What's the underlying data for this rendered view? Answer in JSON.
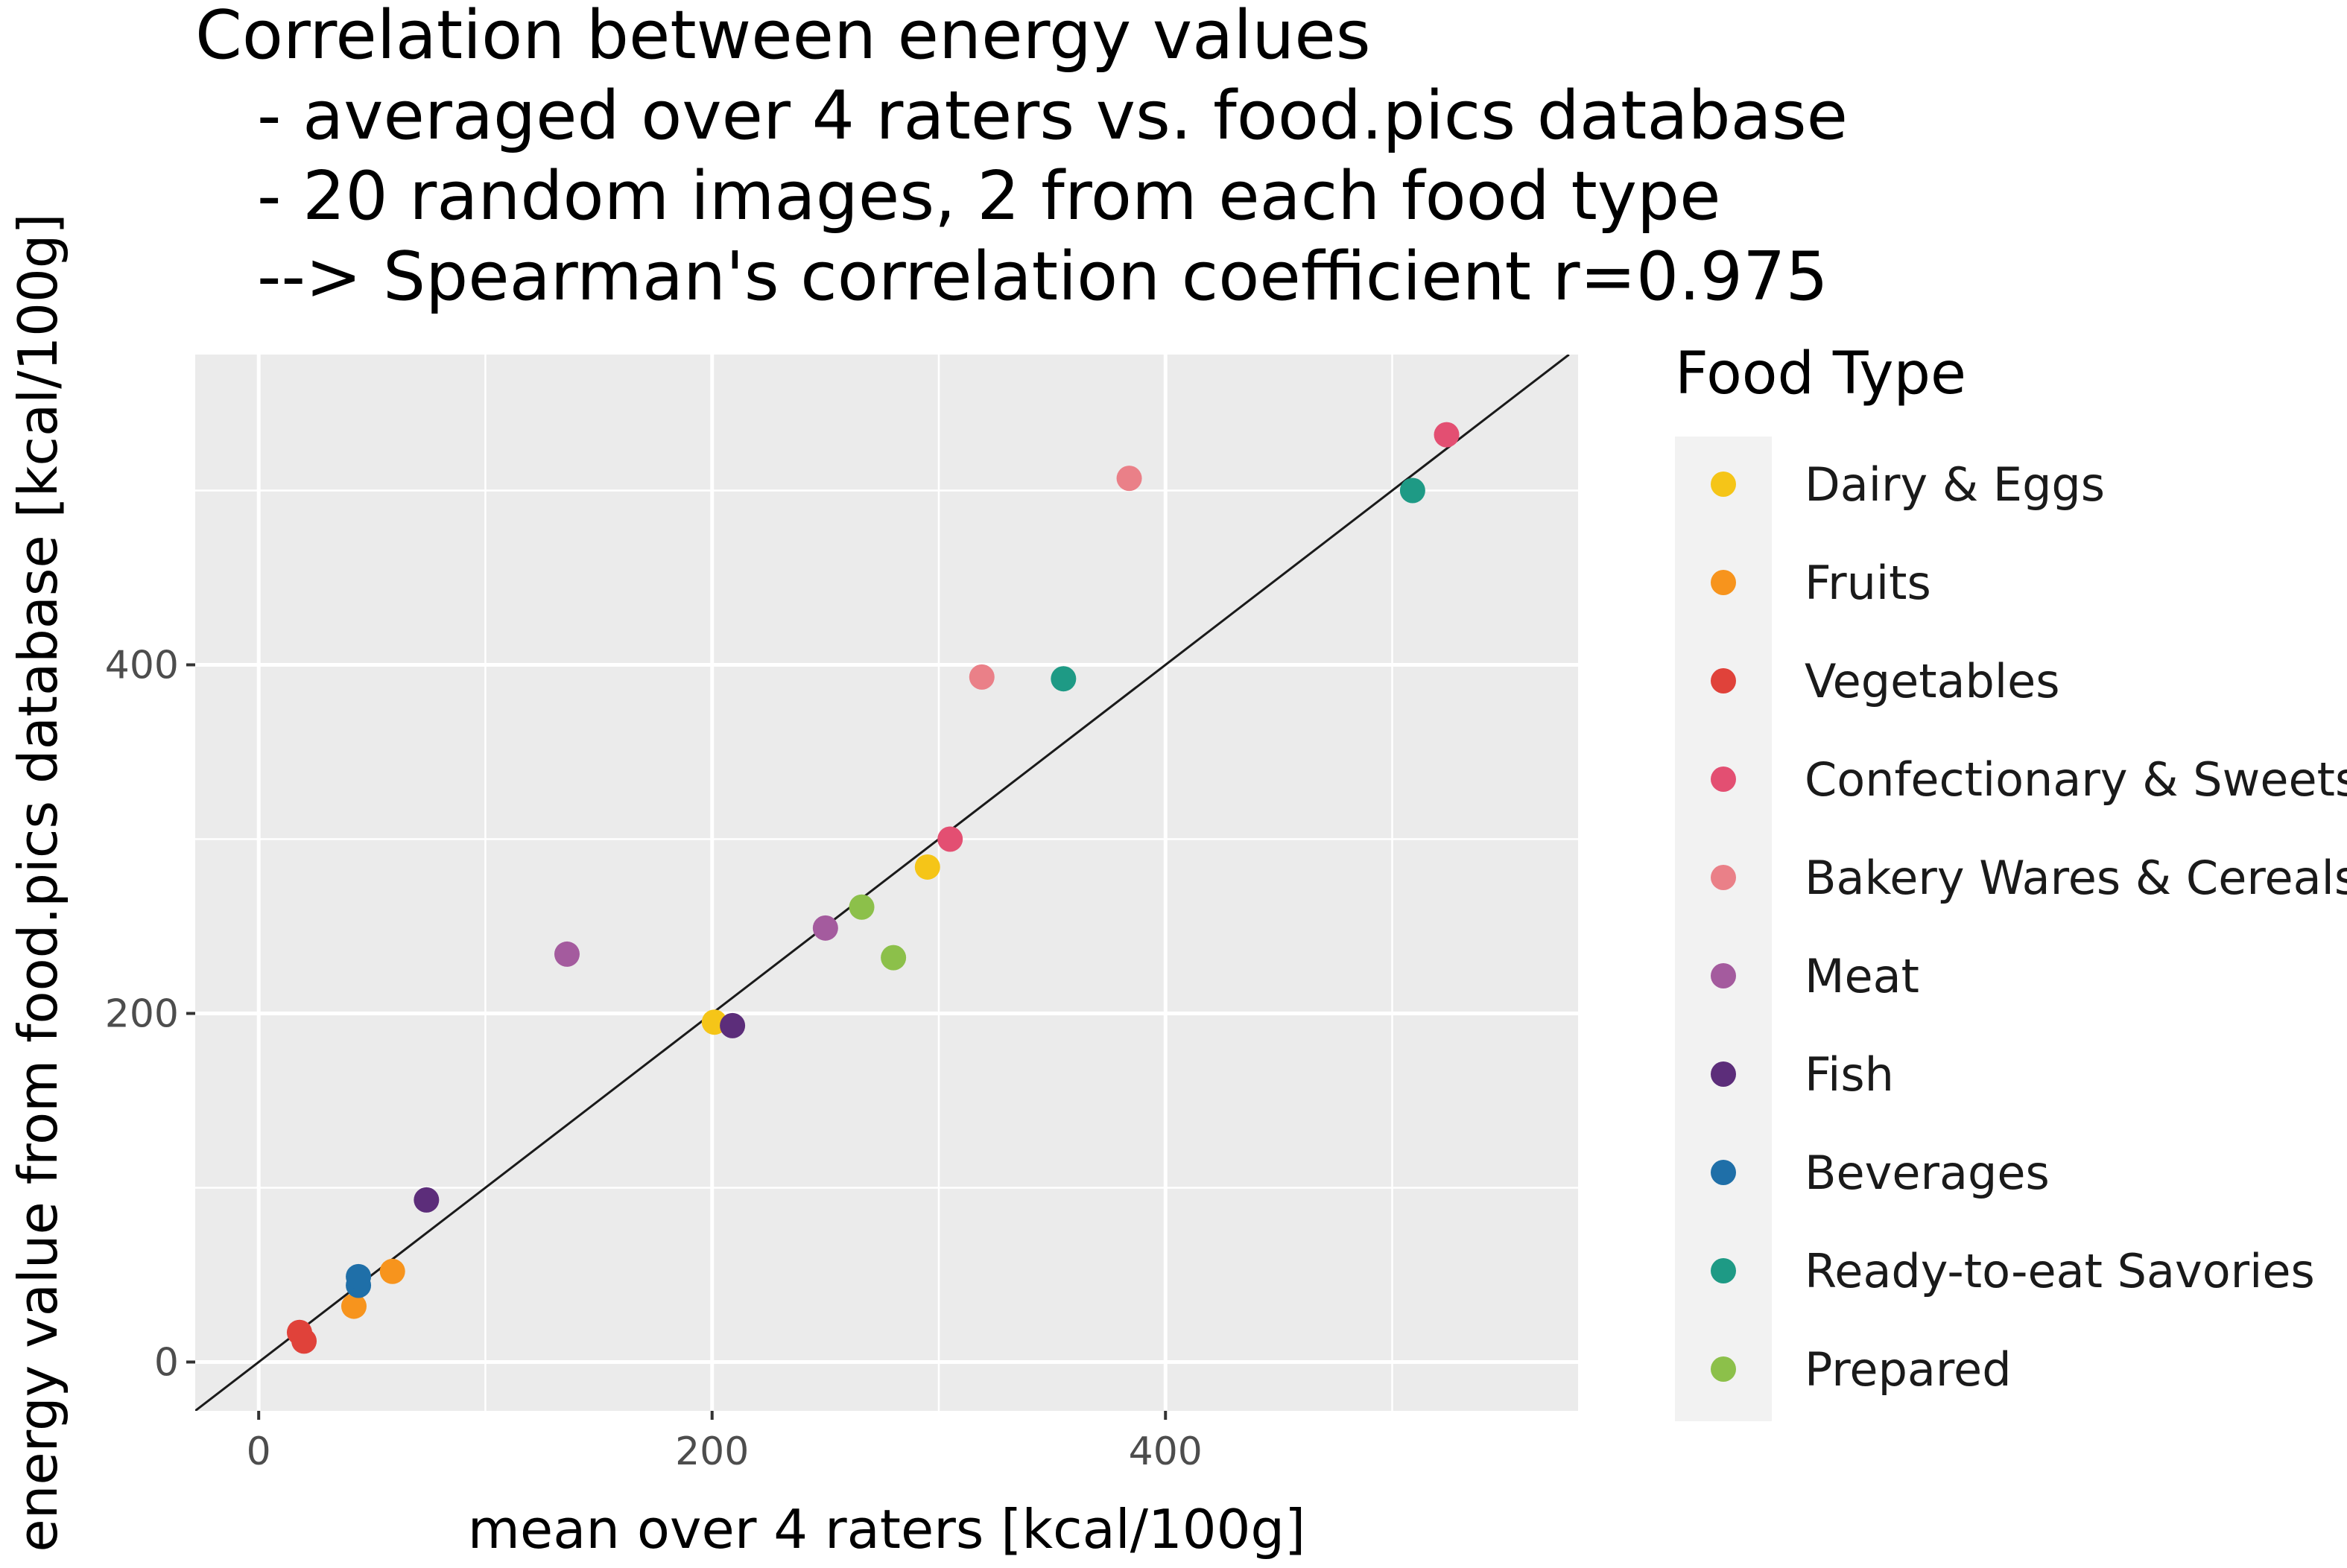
{
  "chart_data": {
    "type": "scatter",
    "title": [
      "Correlation between energy values",
      "- averaged over 4 raters vs. food.pics database",
      "- 20 random images, 2 from each food type",
      "--> Spearman's correlation coefficient r=0.975"
    ],
    "xlabel": "mean over 4 raters [kcal/100g]",
    "ylabel": "energy value from food.pics database [kcal/100g]",
    "xlim": [
      -28,
      582
    ],
    "ylim": [
      -28,
      578
    ],
    "x_ticks": [
      0,
      200,
      400
    ],
    "y_ticks": [
      0,
      200,
      400
    ],
    "x_tick_labels": [
      "0",
      "200",
      "400"
    ],
    "y_tick_labels": [
      "0",
      "200",
      "400"
    ],
    "grid": true,
    "reference_line": {
      "label": "identity line y = x",
      "slope": 1,
      "intercept": 0
    },
    "legend": {
      "title": "Food Type",
      "placement": "right",
      "entries": [
        {
          "label": "Dairy & Eggs",
          "color": "#f5c518"
        },
        {
          "label": "Fruits",
          "color": "#f7941d"
        },
        {
          "label": "Vegetables",
          "color": "#e0423a"
        },
        {
          "label": "Confectionary & Sweets",
          "color": "#e34f72"
        },
        {
          "label": "Bakery Wares & Cereals",
          "color": "#ea8088"
        },
        {
          "label": "Meat",
          "color": "#a45b9e"
        },
        {
          "label": "Fish",
          "color": "#5c2d7a"
        },
        {
          "label": "Beverages",
          "color": "#1f6fa8"
        },
        {
          "label": "Ready-to-eat Savories",
          "color": "#1e9a85"
        },
        {
          "label": "Prepared",
          "color": "#8cc04a"
        }
      ]
    },
    "series": [
      {
        "name": "Dairy & Eggs",
        "color": "#f5c518",
        "points": [
          [
            201,
            195
          ],
          [
            295,
            284
          ]
        ]
      },
      {
        "name": "Fruits",
        "color": "#f7941d",
        "points": [
          [
            42,
            32
          ],
          [
            59,
            52
          ]
        ]
      },
      {
        "name": "Vegetables",
        "color": "#e0423a",
        "points": [
          [
            18,
            17
          ],
          [
            20,
            12
          ]
        ]
      },
      {
        "name": "Confectionary & Sweets",
        "color": "#e34f72",
        "points": [
          [
            305,
            300
          ],
          [
            524,
            532
          ]
        ]
      },
      {
        "name": "Bakery Wares & Cereals",
        "color": "#ea8088",
        "points": [
          [
            319,
            393
          ],
          [
            384,
            507
          ]
        ]
      },
      {
        "name": "Meat",
        "color": "#a45b9e",
        "points": [
          [
            136,
            234
          ],
          [
            250,
            249
          ]
        ]
      },
      {
        "name": "Fish",
        "color": "#5c2d7a",
        "points": [
          [
            74,
            93
          ],
          [
            209,
            193
          ]
        ]
      },
      {
        "name": "Beverages",
        "color": "#1f6fa8",
        "points": [
          [
            44,
            44
          ],
          [
            44,
            49
          ]
        ]
      },
      {
        "name": "Ready-to-eat Savories",
        "color": "#1e9a85",
        "points": [
          [
            355,
            392
          ],
          [
            509,
            500
          ]
        ]
      },
      {
        "name": "Prepared",
        "color": "#8cc04a",
        "points": [
          [
            266,
            261
          ],
          [
            280,
            232
          ]
        ]
      }
    ]
  },
  "colors": {
    "panel_background": "#ebebeb",
    "grid_major": "#ffffff",
    "reference_line": "#1a1a1a",
    "legend_key_background": "#f2f2f2"
  }
}
